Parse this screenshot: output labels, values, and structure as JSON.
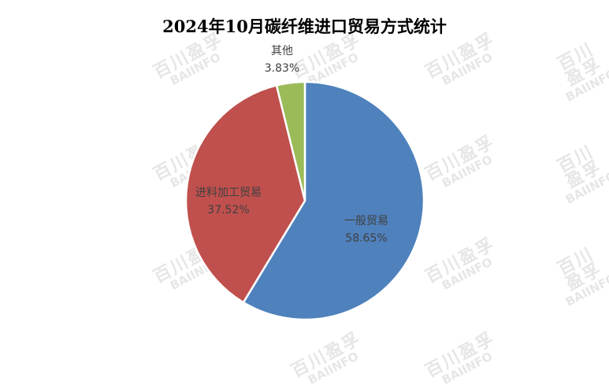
{
  "watermark": {
    "line1": "百川盈孚",
    "line2": "BAIINFO"
  },
  "chart_data": {
    "type": "pie",
    "title": "2024年10月碳纤维进口贸易方式统计",
    "start_angle_deg": 0,
    "direction": "clockwise",
    "slices": [
      {
        "label": "一般贸易",
        "value": 58.65,
        "value_label": "58.65%",
        "color": "#4F81BD"
      },
      {
        "label": "进料加工贸易",
        "value": 37.52,
        "value_label": "37.52%",
        "color": "#C0504D"
      },
      {
        "label": "其他",
        "value": 3.83,
        "value_label": "3.83%",
        "color": "#9BBB59"
      }
    ],
    "legend": "none"
  }
}
